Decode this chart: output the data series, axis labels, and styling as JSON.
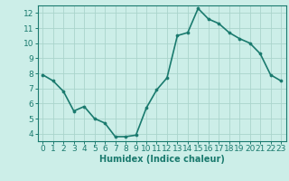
{
  "x": [
    0,
    1,
    2,
    3,
    4,
    5,
    6,
    7,
    8,
    9,
    10,
    11,
    12,
    13,
    14,
    15,
    16,
    17,
    18,
    19,
    20,
    21,
    22,
    23
  ],
  "y": [
    7.9,
    7.5,
    6.8,
    5.5,
    5.8,
    5.0,
    4.7,
    3.8,
    3.8,
    3.9,
    5.7,
    6.9,
    7.7,
    10.5,
    10.7,
    12.3,
    11.6,
    11.3,
    10.7,
    10.3,
    10.0,
    9.3,
    7.9,
    7.5
  ],
  "xlabel": "Humidex (Indice chaleur)",
  "ylabel": "",
  "title": "",
  "line_color": "#1a7a6e",
  "marker_color": "#1a7a6e",
  "bg_color": "#cceee8",
  "grid_color": "#aad4cc",
  "axis_color": "#1a7a6e",
  "tick_color": "#1a7a6e",
  "ylim": [
    3.5,
    12.5
  ],
  "xlim": [
    -0.5,
    23.5
  ],
  "yticks": [
    4,
    5,
    6,
    7,
    8,
    9,
    10,
    11,
    12
  ],
  "xticks": [
    0,
    1,
    2,
    3,
    4,
    5,
    6,
    7,
    8,
    9,
    10,
    11,
    12,
    13,
    14,
    15,
    16,
    17,
    18,
    19,
    20,
    21,
    22,
    23
  ],
  "figsize": [
    3.2,
    2.0
  ],
  "dpi": 100,
  "xlabel_fontsize": 7,
  "tick_fontsize": 6.5,
  "linewidth": 1.2,
  "markersize": 2.2
}
